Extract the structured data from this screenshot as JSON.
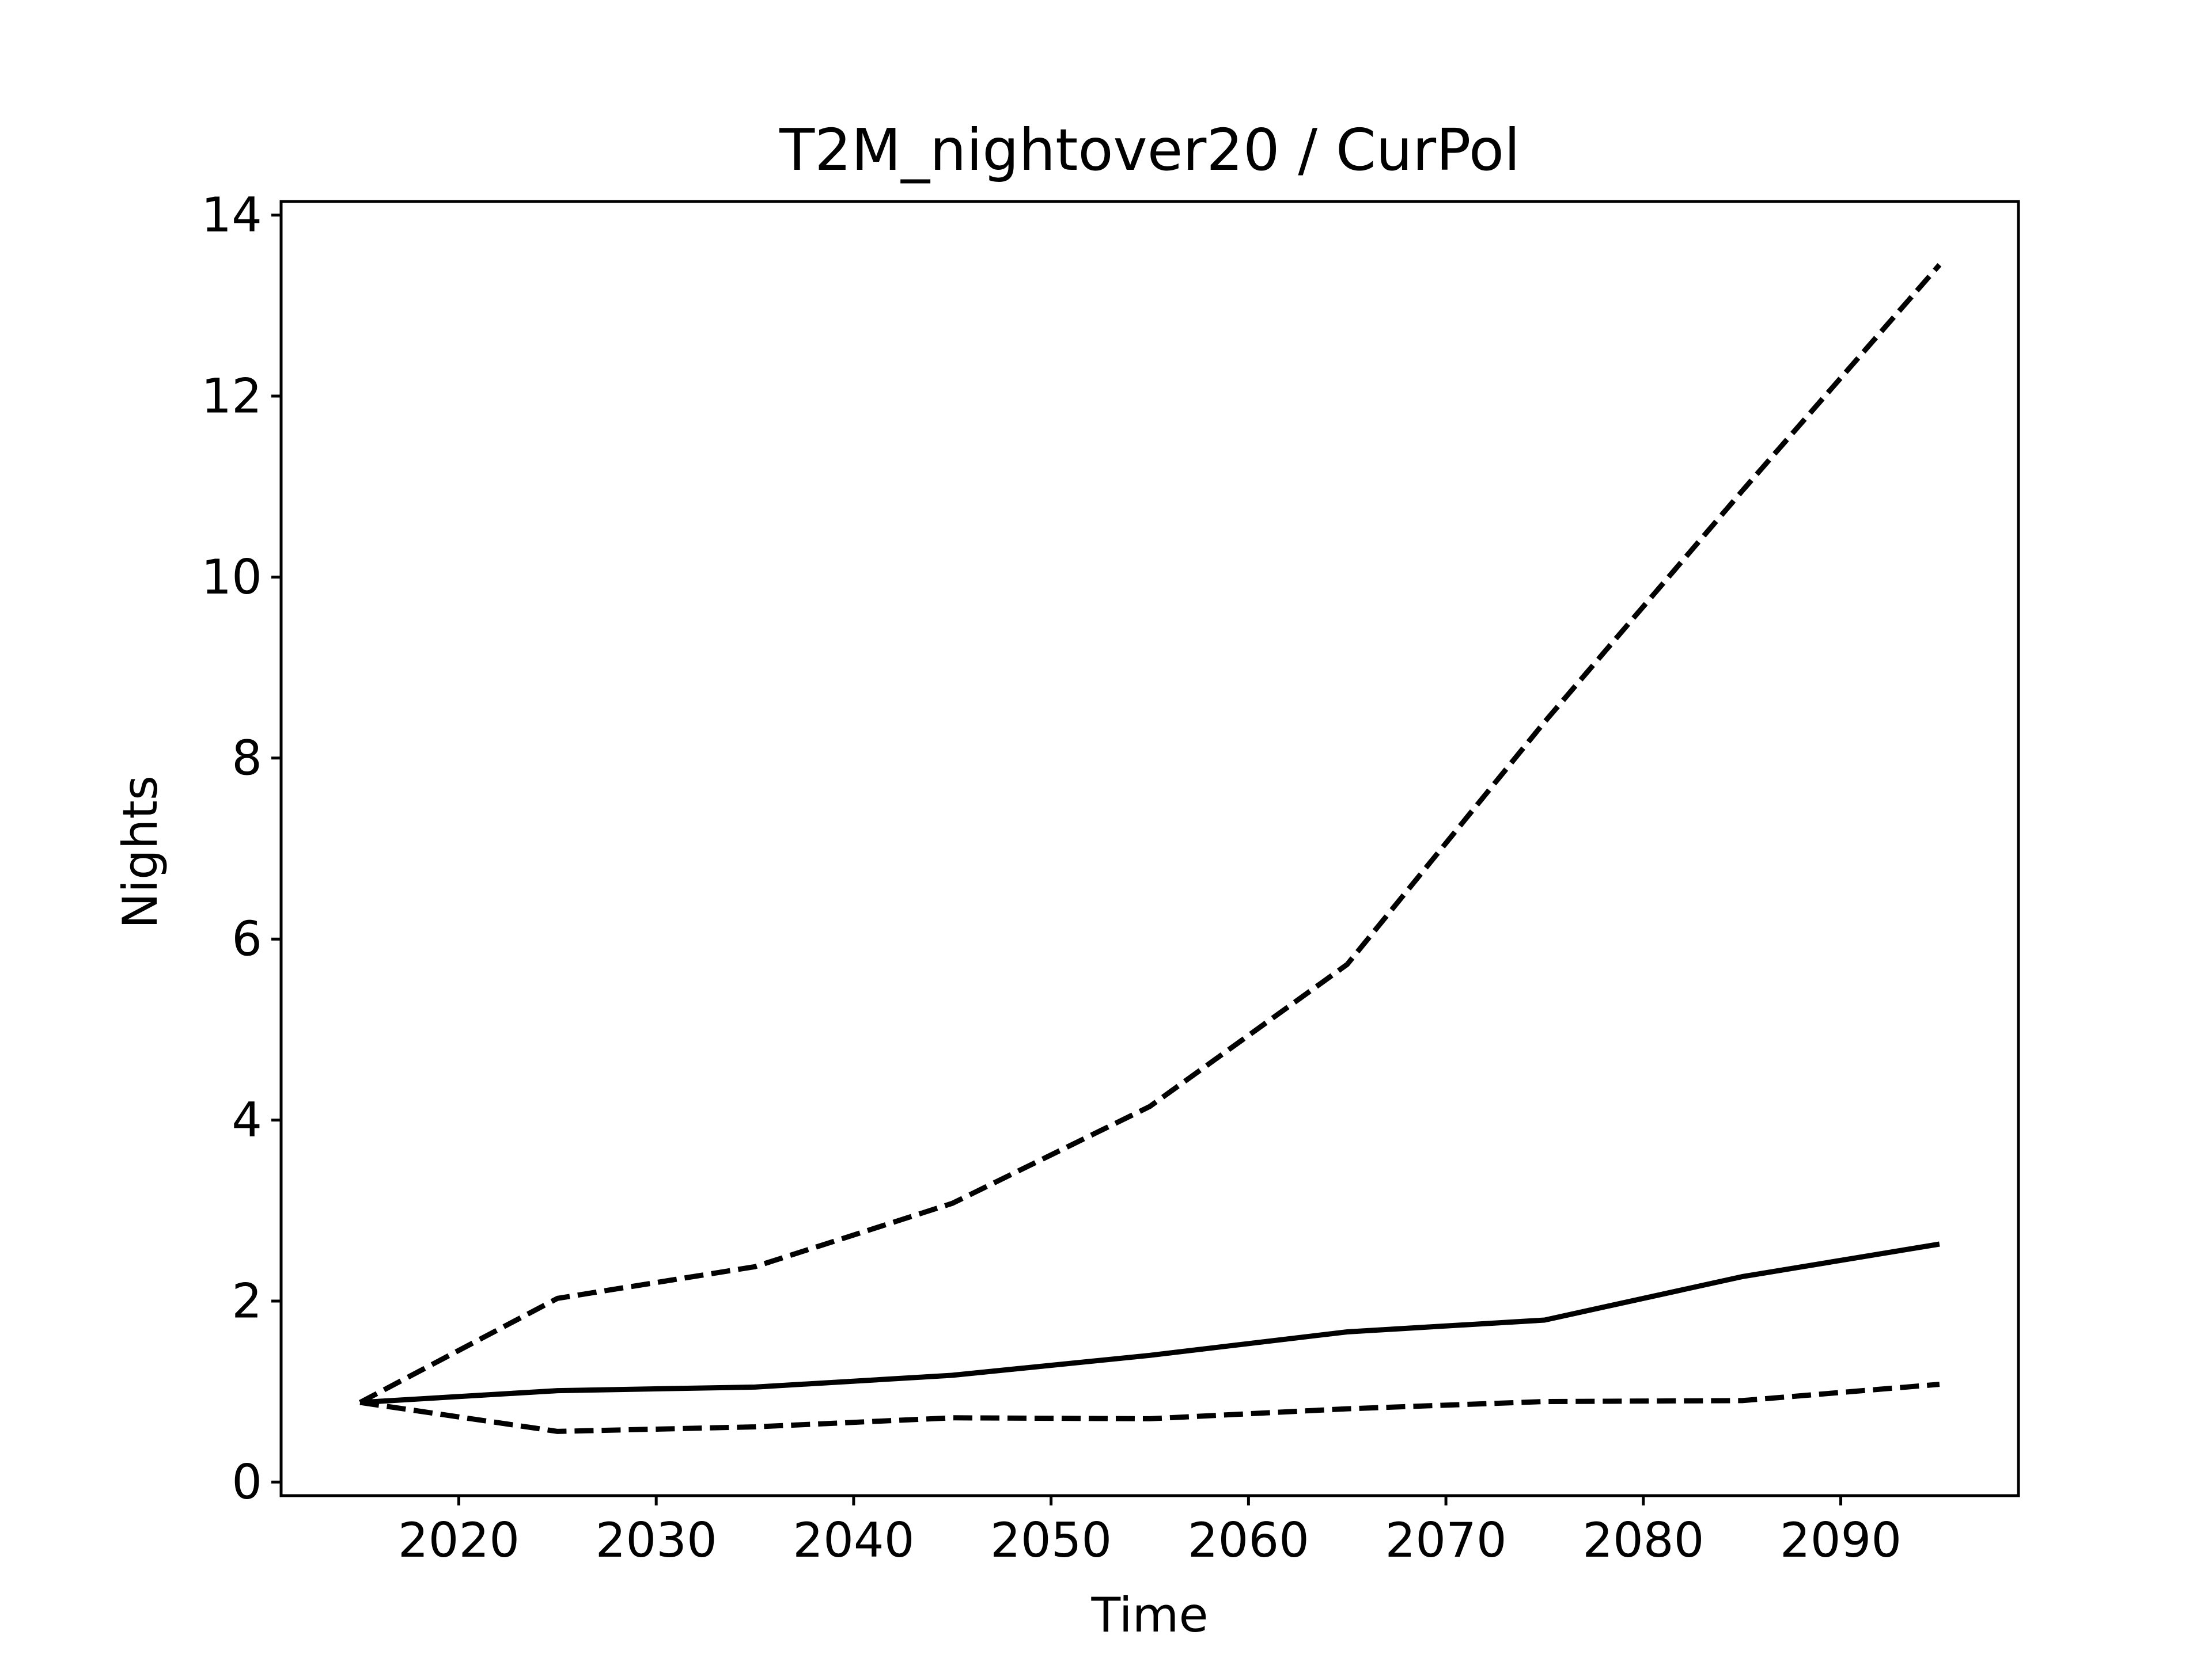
{
  "chart_data": {
    "type": "line",
    "title": "T2M_nightover20 / CurPol",
    "xlabel": "Time",
    "ylabel": "Nights",
    "x": [
      2015,
      2025,
      2035,
      2045,
      2055,
      2065,
      2075,
      2085,
      2095
    ],
    "xlim": [
      2011,
      2099
    ],
    "ylim": [
      -0.15,
      14.15
    ],
    "xticks": [
      2020,
      2030,
      2040,
      2050,
      2060,
      2070,
      2080,
      2090
    ],
    "yticks": [
      0,
      2,
      4,
      6,
      8,
      10,
      12,
      14
    ],
    "grid": false,
    "legend": false,
    "colors": {
      "line": "#000000",
      "frame": "#000000",
      "background": "#ffffff"
    },
    "series": [
      {
        "style": "dashed",
        "values": [
          0.88,
          2.03,
          2.38,
          3.08,
          4.15,
          5.72,
          8.4,
          10.95,
          13.45
        ]
      },
      {
        "style": "solid",
        "values": [
          0.88,
          1.01,
          1.05,
          1.18,
          1.4,
          1.66,
          1.79,
          2.27,
          2.63
        ]
      },
      {
        "style": "dashed",
        "values": [
          0.88,
          0.56,
          0.61,
          0.71,
          0.7,
          0.81,
          0.89,
          0.9,
          1.08
        ]
      }
    ]
  }
}
